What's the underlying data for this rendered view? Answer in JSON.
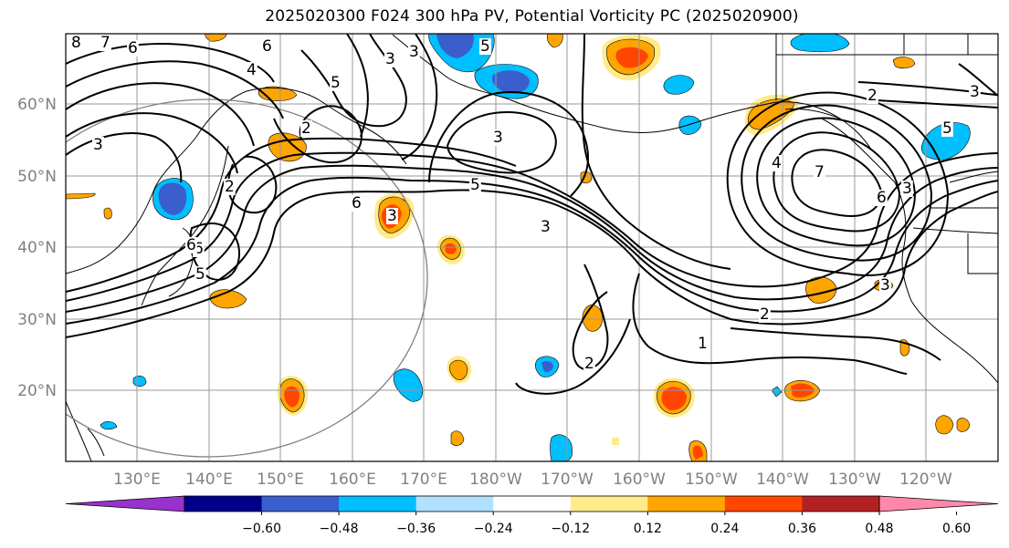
{
  "title": "2025020300 F024 300 hPa PV, Potential Vorticity PC (2025020900)",
  "lon_ticks": [
    "130°E",
    "140°E",
    "150°E",
    "160°E",
    "170°E",
    "180°W",
    "170°W",
    "160°W",
    "150°W",
    "140°W",
    "130°W",
    "120°W"
  ],
  "lat_ticks": [
    "60°N",
    "50°N",
    "40°N",
    "30°N",
    "20°N"
  ],
  "contour_labels": [
    "8",
    "7",
    "6",
    "6",
    "4",
    "3",
    "5",
    "5",
    "3",
    "2",
    "3",
    "3",
    "3",
    "6",
    "2",
    "5",
    "5",
    "6",
    "3",
    "6",
    "4",
    "2",
    "1",
    "2",
    "3",
    "3",
    "7",
    "6",
    "5",
    "3",
    "2"
  ],
  "colorbar": {
    "tick_labels": [
      "−0.60",
      "−0.48",
      "−0.36",
      "−0.24",
      "−0.12",
      "0.12",
      "0.24",
      "0.36",
      "0.48",
      "0.60"
    ],
    "colors": [
      "#9932CC",
      "#00008B",
      "#3A5FCD",
      "#00BFFF",
      "#B2E0FF",
      "#FFFFFF",
      "#FFEB8A",
      "#FFA500",
      "#FF4500",
      "#B22222",
      "#FF88AA"
    ]
  },
  "colors": {
    "contour": "#000000",
    "coast": "#000000",
    "grid": "#999999",
    "circle": "#808080"
  }
}
